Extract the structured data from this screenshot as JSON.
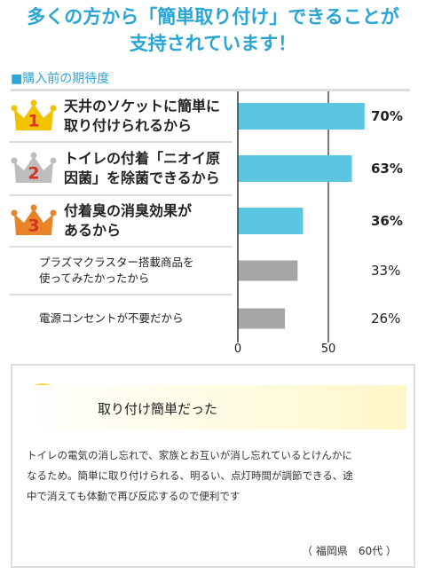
{
  "chart_data": {
    "type": "bar",
    "orientation": "horizontal",
    "title": "多くの方から「簡単取り付け」できることが\n支持されています！",
    "subtitle": "■購入前の期待度",
    "categories": [
      "天井のソケットに簡単に\n取り付けられるから",
      "トイレの付着「ニオイ原\n因菌」を除菌できるから",
      "付着臭の消臭効果が\nあるから",
      "プラズマクラスター搭載商品を\n使ってみたかったから",
      "電源コンセントが不要だから"
    ],
    "ranks": [
      "1",
      "2",
      "3",
      null,
      null
    ],
    "values": [
      70,
      63,
      36,
      33,
      26
    ],
    "value_labels": [
      "70%",
      "63%",
      "36%",
      "33%",
      "26%"
    ],
    "colors": [
      "#5ac6e0",
      "#5ac6e0",
      "#5ac6e0",
      "#a6a6a6",
      "#a6a6a6"
    ],
    "xlim": [
      0,
      100
    ],
    "xticks": [
      0,
      50
    ],
    "grid": true
  },
  "comment": {
    "heading": "取り付け簡単だった",
    "text": "トイレの電気の消し忘れで、家族とお互いが消し忘れているとけんかに\nなるため。簡単に取り付けられる、明るい、点灯時間が調節できる、途\n中で消えても体動で再び反応するので便利です",
    "author": "（ 福岡県　60代 ）"
  }
}
